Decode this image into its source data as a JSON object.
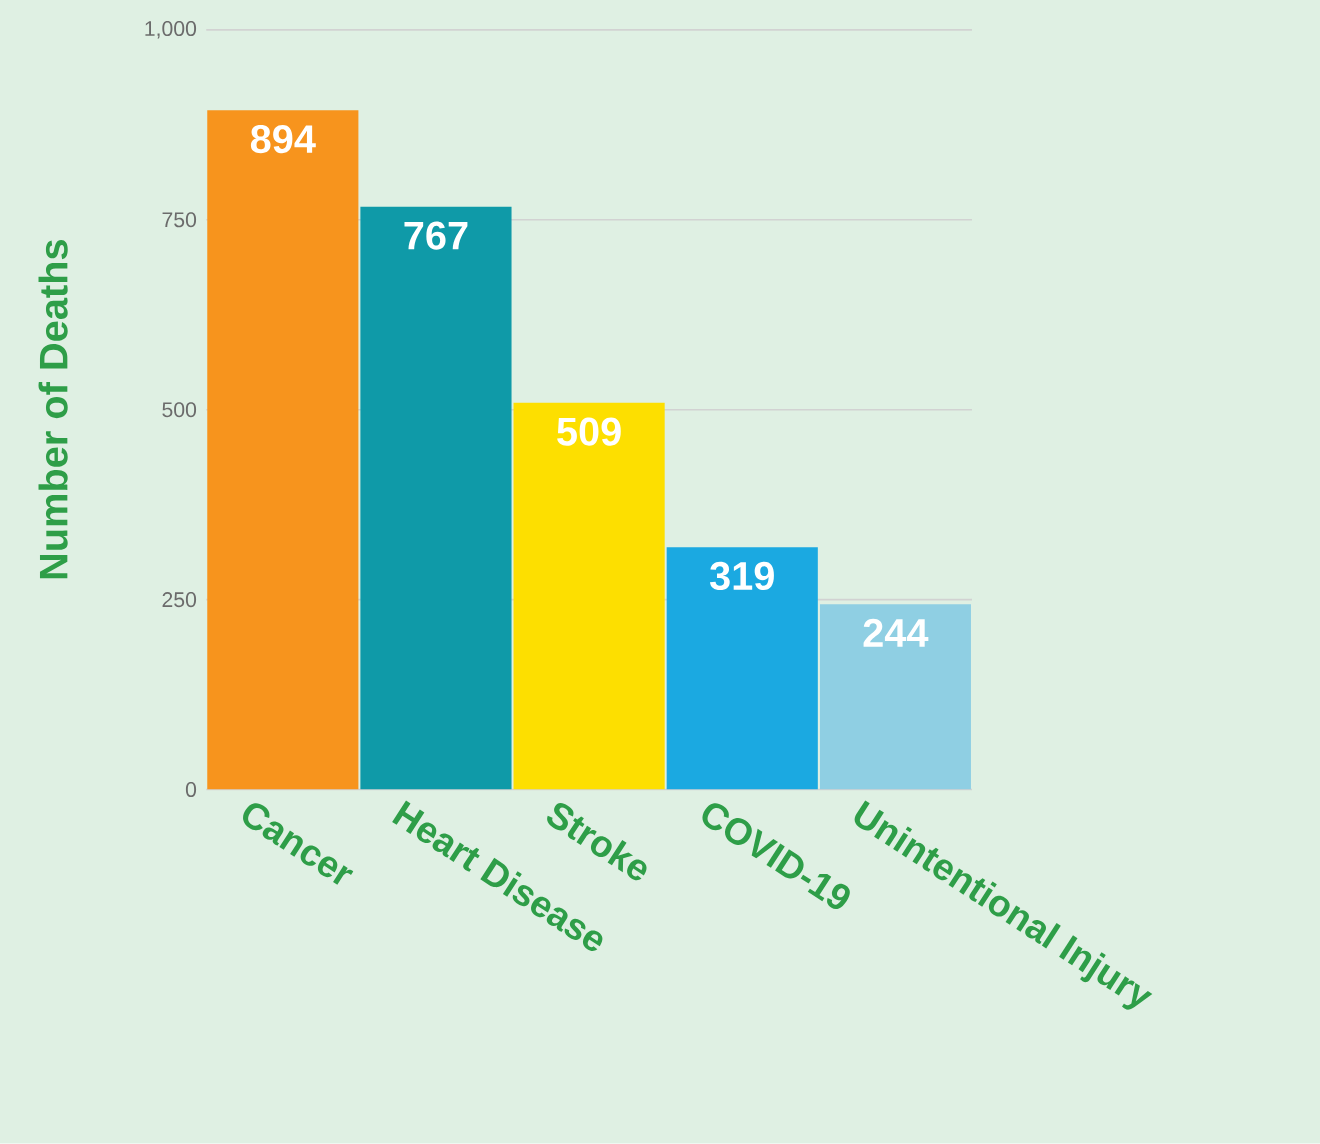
{
  "chart_data": {
    "type": "bar",
    "ylabel": "Number of Deaths",
    "categories": [
      "Cancer",
      "Heart Disease",
      "Stroke",
      "COVID-19",
      "Unintentional Injury"
    ],
    "values": [
      894,
      767,
      509,
      319,
      244
    ],
    "colors": [
      "#f7941d",
      "#0f9aa8",
      "#fddf00",
      "#1ba9e1",
      "#8fcfe3"
    ],
    "ylim": [
      0,
      1000
    ],
    "yticks": [
      0,
      250,
      500,
      750,
      {
        "value": 1000,
        "label": "1,000"
      }
    ],
    "grid": "y",
    "data_labels": true
  }
}
